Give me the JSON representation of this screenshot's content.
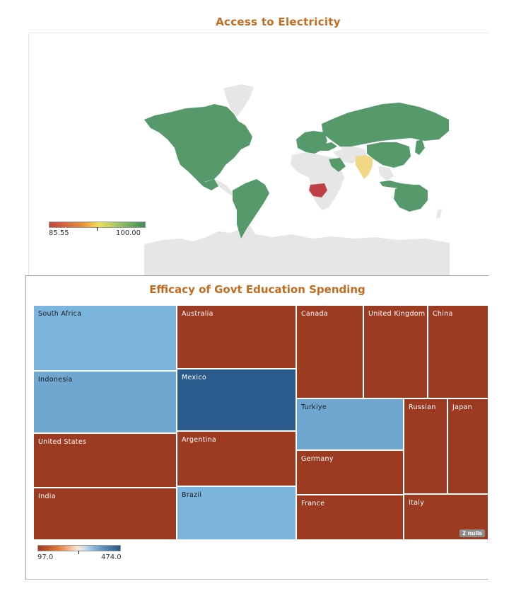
{
  "map_title": "Access to Electricity",
  "treemap_title": "Efficacy of Govt Education Spending",
  "colors": {
    "title": "#c26b1e",
    "high_access": "#56996b",
    "mid_access": "#efd786",
    "low_access": "#c0404a",
    "no_data": "#e6e6e6",
    "tm_dark": "#9c3b22",
    "tm_light_blue": "#7bb4dc",
    "tm_mid_blue": "#6fa7d0",
    "tm_navy": "#2b5b8c"
  },
  "map_legend": {
    "min": "85.55",
    "max": "100.00"
  },
  "treemap_legend": {
    "min": "97.0",
    "max": "474.0"
  },
  "nulls_badge": "2 nulls",
  "chart_data": [
    {
      "type": "choropleth-map",
      "title": "Access to Electricity",
      "color_range": [
        85.55,
        100.0
      ],
      "highlighted_regions": [
        {
          "name": "North America",
          "level": "high"
        },
        {
          "name": "South America",
          "level": "high"
        },
        {
          "name": "Europe",
          "level": "high"
        },
        {
          "name": "Russia",
          "level": "high"
        },
        {
          "name": "China",
          "level": "high"
        },
        {
          "name": "Japan",
          "level": "high"
        },
        {
          "name": "Indonesia",
          "level": "high"
        },
        {
          "name": "Australia",
          "level": "high"
        },
        {
          "name": "Turkey",
          "level": "high"
        },
        {
          "name": "Saudi Arabia",
          "level": "high"
        },
        {
          "name": "India",
          "level": "mid"
        },
        {
          "name": "South Africa",
          "level": "low"
        }
      ]
    },
    {
      "type": "treemap",
      "title": "Efficacy of Govt Education Spending",
      "color_range": [
        97.0,
        474.0
      ],
      "cells": [
        {
          "label": "South Africa",
          "color": "light-blue"
        },
        {
          "label": "Indonesia",
          "color": "mid-blue"
        },
        {
          "label": "United States",
          "color": "dark"
        },
        {
          "label": "India",
          "color": "dark"
        },
        {
          "label": "Australia",
          "color": "dark"
        },
        {
          "label": "Mexico",
          "color": "navy"
        },
        {
          "label": "Argentina",
          "color": "dark"
        },
        {
          "label": "Brazil",
          "color": "light-blue"
        },
        {
          "label": "Canada",
          "color": "dark"
        },
        {
          "label": "United Kingdom",
          "color": "dark"
        },
        {
          "label": "China",
          "color": "dark"
        },
        {
          "label": "Turkiye",
          "color": "mid-blue"
        },
        {
          "label": "Germany",
          "color": "dark"
        },
        {
          "label": "France",
          "color": "dark"
        },
        {
          "label": "Russian",
          "color": "dark"
        },
        {
          "label": "Japan",
          "color": "dark"
        },
        {
          "label": "Italy",
          "color": "dark"
        }
      ]
    }
  ]
}
